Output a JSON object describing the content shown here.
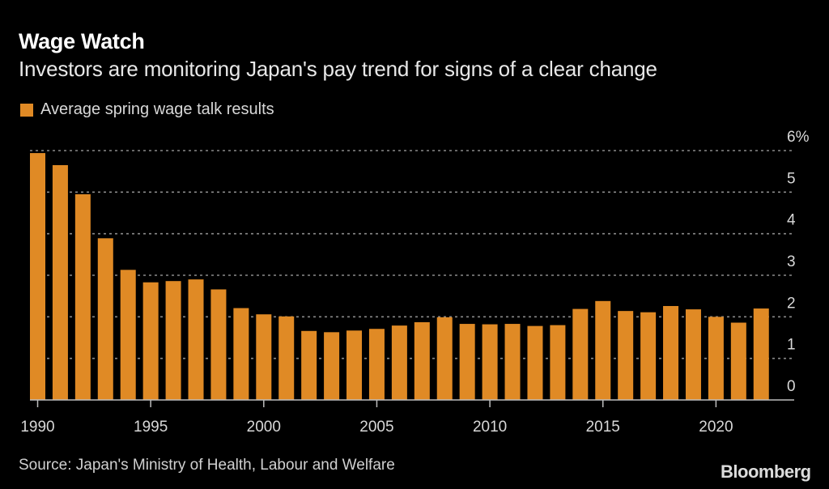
{
  "header": {
    "title": "Wage Watch",
    "subtitle": "Investors are monitoring Japan's pay trend for signs of a clear change"
  },
  "footer": {
    "source": "Source: Japan's Ministry of Health, Labour and Welfare",
    "logo": "Bloomberg"
  },
  "colors": {
    "bar": "#e08a25",
    "background": "#000000",
    "gridline": "#8a8a8a",
    "axis": "#bdbdbd"
  },
  "chart_data": {
    "type": "bar",
    "title": "Wage Watch",
    "subtitle": "Investors are monitoring Japan's pay trend for signs of a clear change",
    "xlabel": "",
    "ylabel": "",
    "legend": {
      "entries": [
        "Average spring wage talk results"
      ],
      "position": "top-left"
    },
    "categories": [
      1990,
      1991,
      1992,
      1993,
      1994,
      1995,
      1996,
      1997,
      1998,
      1999,
      2000,
      2001,
      2002,
      2003,
      2004,
      2005,
      2006,
      2007,
      2008,
      2009,
      2010,
      2011,
      2012,
      2013,
      2014,
      2015,
      2016,
      2017,
      2018,
      2019,
      2020,
      2021,
      2022
    ],
    "series": [
      {
        "name": "Average spring wage talk results",
        "values": [
          5.94,
          5.65,
          4.95,
          3.89,
          3.13,
          2.83,
          2.86,
          2.9,
          2.66,
          2.21,
          2.06,
          2.01,
          1.66,
          1.63,
          1.67,
          1.71,
          1.79,
          1.87,
          1.99,
          1.83,
          1.82,
          1.83,
          1.78,
          1.8,
          2.19,
          2.38,
          2.14,
          2.11,
          2.26,
          2.18,
          2.0,
          1.86,
          2.2
        ]
      }
    ],
    "x_ticks": [
      1990,
      1995,
      2000,
      2005,
      2010,
      2015,
      2020
    ],
    "y_ticks": [
      0,
      1,
      2,
      3,
      4,
      5,
      6
    ],
    "y_tick_labels": [
      "0",
      "1",
      "2",
      "3",
      "4",
      "5",
      "6%"
    ],
    "ylim": [
      0,
      6
    ],
    "y_axis_side": "right",
    "grid": true
  }
}
